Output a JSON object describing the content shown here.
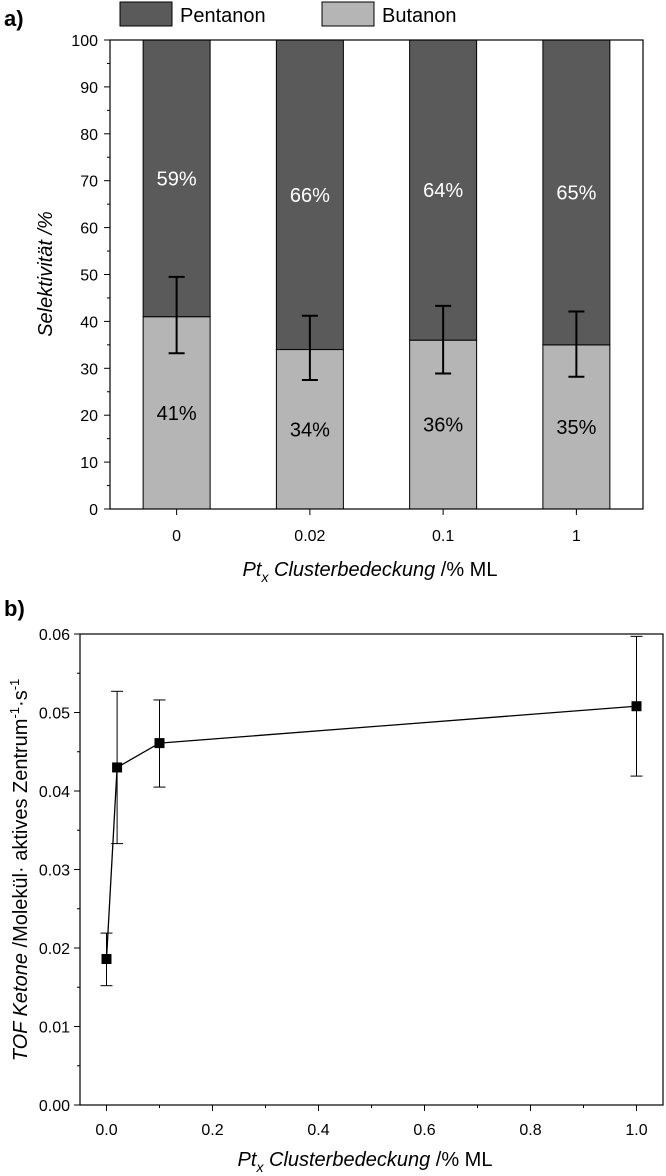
{
  "chart_data": [
    {
      "panel_label": "a)",
      "type": "bar",
      "stacked": true,
      "categories": [
        "0",
        "0.02",
        "0.1",
        "1"
      ],
      "series": [
        {
          "name": "Butanon",
          "values": [
            41,
            34,
            36,
            35
          ],
          "labels": [
            "41%",
            "34%",
            "36%",
            "35%"
          ],
          "color": "#b5b5b5"
        },
        {
          "name": "Pentanon",
          "values": [
            59,
            66,
            64,
            65
          ],
          "labels": [
            "59%",
            "66%",
            "64%",
            "65%"
          ],
          "color": "#5a5a5a"
        }
      ],
      "error_bars": {
        "center": [
          41.3,
          34.4,
          36.1,
          35.2
        ],
        "lower": [
          33.2,
          27.5,
          28.9,
          28.2
        ],
        "upper": [
          49.5,
          41.2,
          43.3,
          42.1
        ]
      },
      "ylabel": "Selektivität /%",
      "xlabel": {
        "main": "Pt",
        "sub": "x",
        "rest": " Clusterbedeckung",
        "unit": " /% ML"
      },
      "ylim": [
        0,
        100
      ],
      "yticks": [
        0,
        10,
        20,
        30,
        40,
        50,
        60,
        70,
        80,
        90,
        100
      ],
      "legend_position": "top"
    },
    {
      "panel_label": "b)",
      "type": "line",
      "x": [
        0.0,
        0.02,
        0.1,
        1.0
      ],
      "y": [
        0.0186,
        0.043,
        0.0461,
        0.0508
      ],
      "error_lower": [
        0.0152,
        0.0333,
        0.0405,
        0.0419
      ],
      "error_upper": [
        0.0219,
        0.0527,
        0.0516,
        0.0597
      ],
      "ylabel": {
        "main": "TOF Ketone",
        "unit": " /Molekül· aktives Zentrum",
        "sup1": "-1",
        "mid": "·s",
        "sup2": "-1"
      },
      "xlabel": {
        "main": "Pt",
        "sub": "x",
        "rest": " Clusterbedeckung",
        "unit": " /% ML"
      },
      "xlim": [
        -0.05,
        1.05
      ],
      "ylim": [
        0,
        0.06
      ],
      "xticks": [
        0.0,
        0.2,
        0.4,
        0.6,
        0.8,
        1.0
      ],
      "xtick_labels": [
        "0.0",
        "0.2",
        "0.4",
        "0.6",
        "0.8",
        "1.0"
      ],
      "yticks": [
        0,
        0.01,
        0.02,
        0.03,
        0.04,
        0.05,
        0.06
      ],
      "ytick_labels": [
        "0.00",
        "0.01",
        "0.02",
        "0.03",
        "0.04",
        "0.05",
        "0.06"
      ],
      "marker": "square"
    }
  ]
}
